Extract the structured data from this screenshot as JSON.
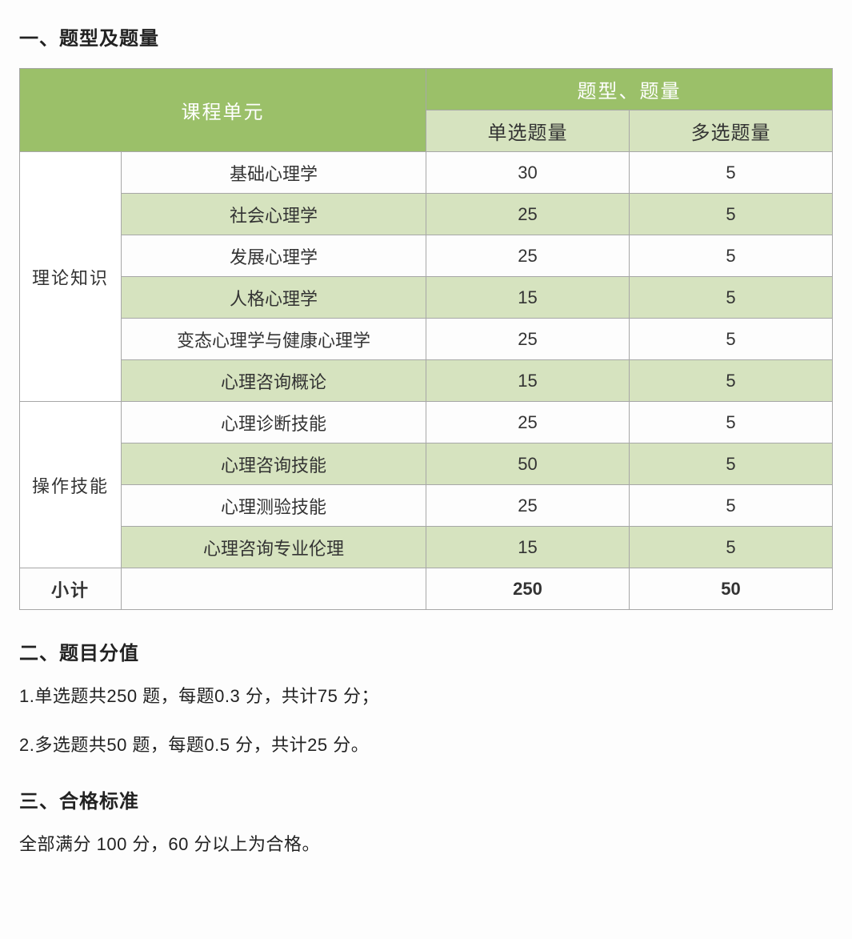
{
  "colors": {
    "header_bg": "#9bc069",
    "header_text": "#ffffff",
    "alt_bg": "#d6e3bf",
    "border": "#a7a7a7",
    "page_bg": "#fdfdfd",
    "text": "#222222"
  },
  "section1": {
    "title": "一、题型及题量"
  },
  "table": {
    "type": "table",
    "header": {
      "course_unit": "课程单元",
      "question_group": "题型、题量",
      "single_qty": "单选题量",
      "multi_qty": "多选题量"
    },
    "groups": [
      {
        "name": "理论知识",
        "rows": [
          {
            "course": "基础心理学",
            "single": 30,
            "multi": 5,
            "alt": false
          },
          {
            "course": "社会心理学",
            "single": 25,
            "multi": 5,
            "alt": true
          },
          {
            "course": "发展心理学",
            "single": 25,
            "multi": 5,
            "alt": false
          },
          {
            "course": "人格心理学",
            "single": 15,
            "multi": 5,
            "alt": true
          },
          {
            "course": "变态心理学与健康心理学",
            "single": 25,
            "multi": 5,
            "alt": false
          },
          {
            "course": "心理咨询概论",
            "single": 15,
            "multi": 5,
            "alt": true
          }
        ]
      },
      {
        "name": "操作技能",
        "rows": [
          {
            "course": "心理诊断技能",
            "single": 25,
            "multi": 5,
            "alt": false
          },
          {
            "course": "心理咨询技能",
            "single": 50,
            "multi": 5,
            "alt": true
          },
          {
            "course": "心理测验技能",
            "single": 25,
            "multi": 5,
            "alt": false
          },
          {
            "course": "心理咨询专业伦理",
            "single": 15,
            "multi": 5,
            "alt": true
          }
        ]
      }
    ],
    "subtotal": {
      "label": "小计",
      "single": 250,
      "multi": 50
    }
  },
  "section2": {
    "title": "二、题目分值",
    "line1": "1.单选题共250 题，每题0.3 分，共计75 分；",
    "line2": "2.多选题共50 题，每题0.5 分，共计25 分。"
  },
  "section3": {
    "title": "三、合格标准",
    "line1": "全部满分 100 分，60 分以上为合格。"
  }
}
